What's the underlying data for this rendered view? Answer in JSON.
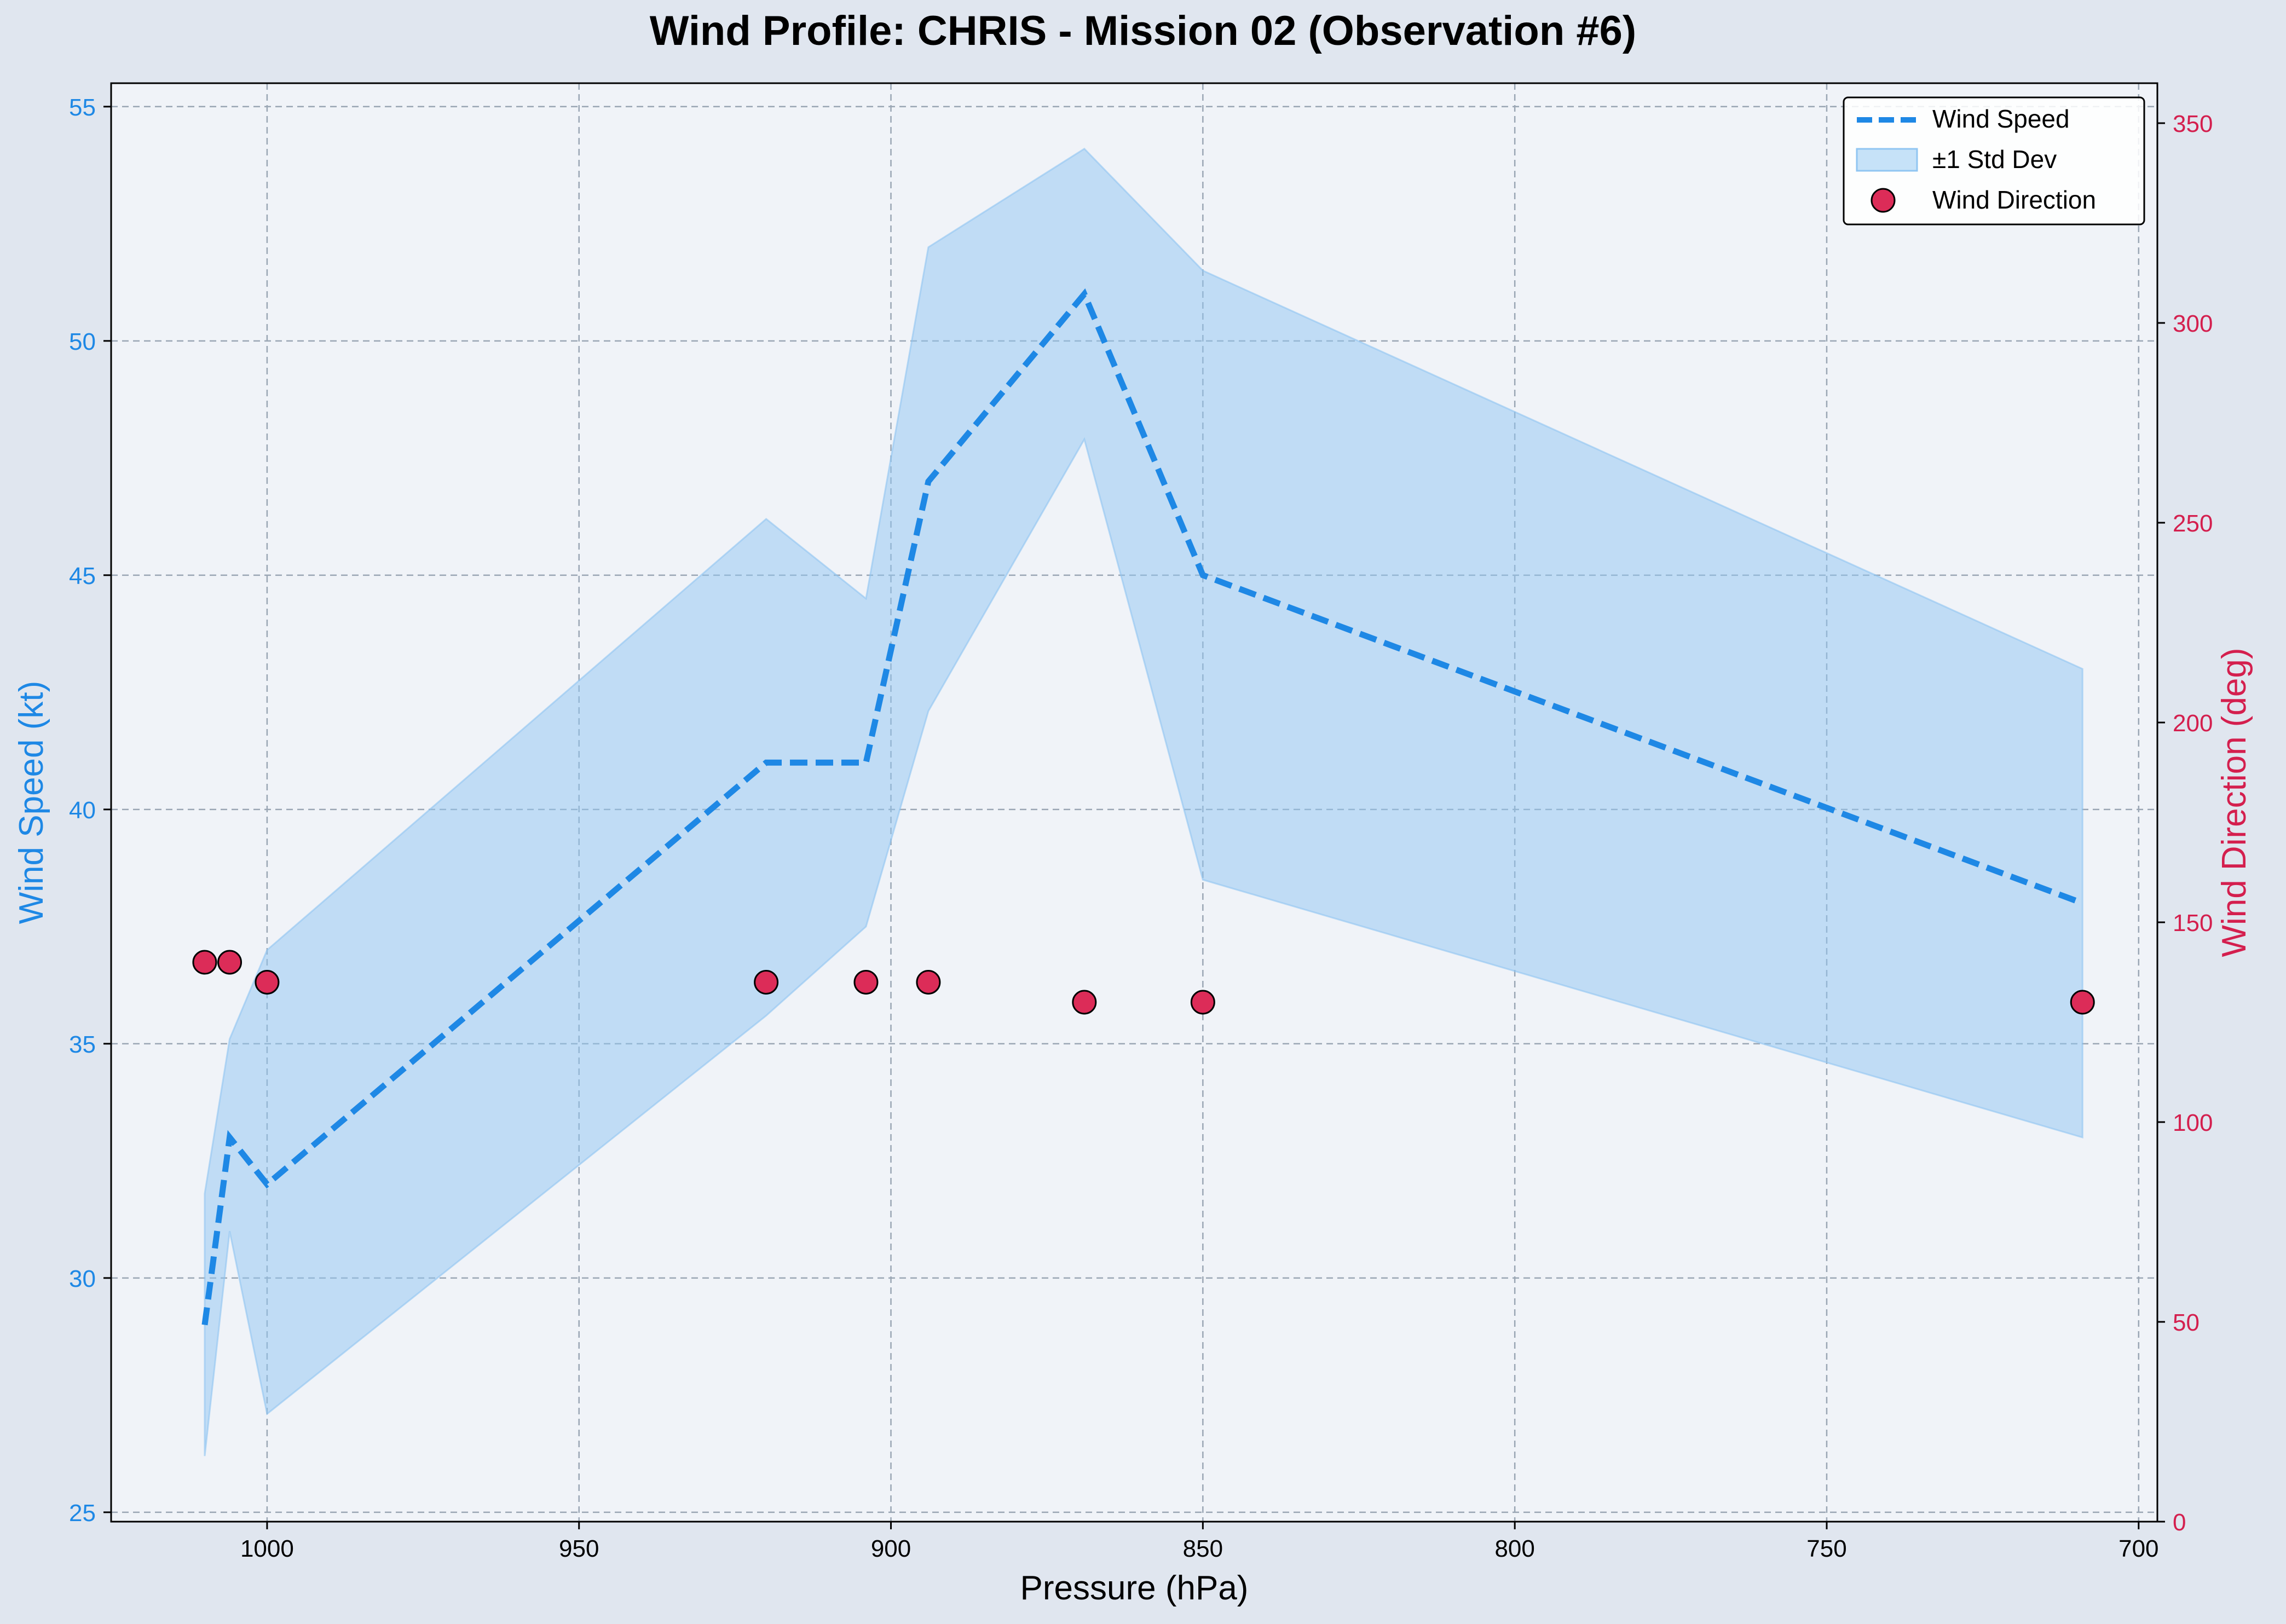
{
  "chart_data": {
    "type": "line",
    "title": "Wind Profile: CHRIS - Mission 02 (Observation #6)",
    "xlabel": "Pressure (hPa)",
    "ylabel": "Wind Speed (kt)",
    "y2label": "Wind Direction (deg)",
    "x_inverted": true,
    "xlim": [
      1025,
      697
    ],
    "ylim": [
      24.8,
      55.5
    ],
    "y2lim": [
      0,
      360
    ],
    "xticks": [
      1000,
      950,
      900,
      850,
      800,
      750,
      700
    ],
    "yticks": [
      25,
      30,
      35,
      40,
      45,
      50,
      55
    ],
    "y2ticks": [
      0,
      50,
      100,
      150,
      200,
      250,
      300,
      350
    ],
    "grid": true,
    "legend_position": "top-right",
    "colors": {
      "speed": "#1e88e5",
      "band": "#90c5f2",
      "direction": "#dc2c58",
      "direction_axis": "#d41f4e",
      "plot_bg": "#f0f3f8",
      "figure_bg": "#e0e6ef",
      "grid": "#9aa6b4"
    },
    "legend": [
      "Wind Speed",
      "±1 Std Dev",
      "Wind Direction"
    ],
    "series": [
      {
        "name": "Wind Speed",
        "axis": "left",
        "style": "dashed",
        "x": [
          1010,
          1006,
          1000,
          920,
          904,
          894,
          869,
          850,
          709
        ],
        "y": [
          29,
          33,
          32,
          41,
          41,
          47,
          51,
          45,
          38
        ]
      },
      {
        "name": "±1 Std Dev",
        "axis": "left",
        "style": "band",
        "x": [
          1010,
          1006,
          1000,
          920,
          904,
          894,
          869,
          850,
          709
        ],
        "upper": [
          31.8,
          35.1,
          37.0,
          46.2,
          44.5,
          52.0,
          54.1,
          51.5,
          43.0
        ],
        "lower": [
          26.2,
          31.0,
          27.1,
          35.6,
          37.5,
          42.1,
          47.9,
          38.5,
          33.0
        ]
      },
      {
        "name": "Wind Direction",
        "axis": "right",
        "style": "scatter",
        "x": [
          1010,
          1006,
          1000,
          920,
          904,
          894,
          869,
          850,
          709
        ],
        "y": [
          140,
          140,
          135,
          135,
          135,
          135,
          130,
          130,
          130
        ]
      }
    ]
  }
}
